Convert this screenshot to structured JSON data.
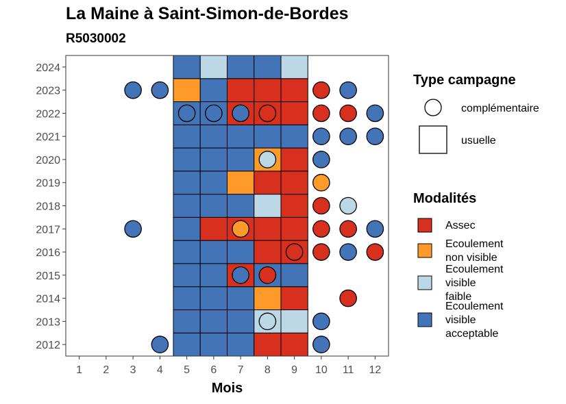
{
  "title": "La Maine à Saint-Simon-de-Bordes",
  "subtitle": "R5030002",
  "chart_data": {
    "type": "heatmap",
    "xlabel": "Mois",
    "ylabel": "",
    "x_ticks": [
      1,
      2,
      3,
      4,
      5,
      6,
      7,
      8,
      9,
      10,
      11,
      12
    ],
    "y_ticks": [
      2012,
      2013,
      2014,
      2015,
      2016,
      2017,
      2018,
      2019,
      2020,
      2021,
      2022,
      2023,
      2024
    ],
    "xlim": [
      0.5,
      12.5
    ],
    "ylim": [
      2011.5,
      2024.5
    ],
    "shaded_months": [
      5,
      9
    ],
    "grid": false,
    "legend_position": "right",
    "legend_type": {
      "title": "Type campagne",
      "entries": [
        {
          "key": "complementaire",
          "label": "complémentaire",
          "shape": "circle"
        },
        {
          "key": "usuelle",
          "label": "usuelle",
          "shape": "square"
        }
      ]
    },
    "legend_modalites": {
      "title": "Modalités",
      "entries": [
        {
          "key": "assec",
          "lines": [
            "Assec"
          ],
          "color": "#d7301f"
        },
        {
          "key": "nonvis",
          "lines": [
            "Ecoulement",
            "non visible"
          ],
          "color": "#fd9a2a"
        },
        {
          "key": "faible",
          "lines": [
            "Ecoulement",
            "visible",
            "faible"
          ],
          "color": "#bcd7e6"
        },
        {
          "key": "accept",
          "lines": [
            "Ecoulement",
            "visible",
            "acceptable"
          ],
          "color": "#4474b8"
        }
      ]
    },
    "usuelle": {
      "2024": [
        "accept",
        "faible",
        "accept",
        "accept",
        "faible"
      ],
      "2023": [
        "nonvis",
        "accept",
        "assec",
        "assec",
        "assec"
      ],
      "2022": [
        "accept",
        "accept",
        "assec",
        "assec",
        "assec"
      ],
      "2021": [
        "accept",
        "accept",
        "accept",
        "accept",
        "accept"
      ],
      "2020": [
        "accept",
        "accept",
        "accept",
        "nonvis",
        "assec"
      ],
      "2019": [
        "accept",
        "accept",
        "nonvis",
        "assec",
        "assec"
      ],
      "2018": [
        "accept",
        "accept",
        "accept",
        "faible",
        "assec"
      ],
      "2017": [
        "accept",
        "assec",
        "assec",
        "assec",
        "assec"
      ],
      "2016": [
        "accept",
        "accept",
        "accept",
        "assec",
        "assec"
      ],
      "2015": [
        "accept",
        "accept",
        "assec",
        "accept",
        "accept"
      ],
      "2014": [
        "accept",
        "accept",
        "accept",
        "nonvis",
        "assec"
      ],
      "2013": [
        "accept",
        "accept",
        "accept",
        "faible",
        "faible"
      ],
      "2012": [
        "accept",
        "accept",
        "accept",
        "assec",
        "assec"
      ]
    },
    "complementaire": [
      {
        "year": 2023,
        "month": 3,
        "mod": "accept"
      },
      {
        "year": 2023,
        "month": 4,
        "mod": "accept"
      },
      {
        "year": 2023,
        "month": 10,
        "mod": "assec"
      },
      {
        "year": 2023,
        "month": 11,
        "mod": "accept"
      },
      {
        "year": 2022,
        "month": 5,
        "mod": "accept"
      },
      {
        "year": 2022,
        "month": 6,
        "mod": "accept"
      },
      {
        "year": 2022,
        "month": 7,
        "mod": "accept"
      },
      {
        "year": 2022,
        "month": 8,
        "mod": "assec"
      },
      {
        "year": 2022,
        "month": 10,
        "mod": "assec"
      },
      {
        "year": 2022,
        "month": 11,
        "mod": "assec"
      },
      {
        "year": 2022,
        "month": 12,
        "mod": "accept"
      },
      {
        "year": 2021,
        "month": 10,
        "mod": "accept"
      },
      {
        "year": 2021,
        "month": 11,
        "mod": "accept"
      },
      {
        "year": 2021,
        "month": 12,
        "mod": "accept"
      },
      {
        "year": 2020,
        "month": 8,
        "mod": "faible"
      },
      {
        "year": 2020,
        "month": 10,
        "mod": "accept"
      },
      {
        "year": 2019,
        "month": 10,
        "mod": "nonvis"
      },
      {
        "year": 2018,
        "month": 10,
        "mod": "assec"
      },
      {
        "year": 2018,
        "month": 11,
        "mod": "faible"
      },
      {
        "year": 2017,
        "month": 3,
        "mod": "accept"
      },
      {
        "year": 2017,
        "month": 7,
        "mod": "nonvis"
      },
      {
        "year": 2017,
        "month": 10,
        "mod": "assec"
      },
      {
        "year": 2017,
        "month": 11,
        "mod": "assec"
      },
      {
        "year": 2017,
        "month": 12,
        "mod": "accept"
      },
      {
        "year": 2016,
        "month": 9,
        "mod": "assec"
      },
      {
        "year": 2016,
        "month": 10,
        "mod": "assec"
      },
      {
        "year": 2016,
        "month": 11,
        "mod": "accept"
      },
      {
        "year": 2016,
        "month": 12,
        "mod": "assec"
      },
      {
        "year": 2015,
        "month": 7,
        "mod": "accept"
      },
      {
        "year": 2015,
        "month": 8,
        "mod": "assec"
      },
      {
        "year": 2014,
        "month": 11,
        "mod": "assec"
      },
      {
        "year": 2013,
        "month": 8,
        "mod": "faible"
      },
      {
        "year": 2013,
        "month": 10,
        "mod": "accept"
      },
      {
        "year": 2012,
        "month": 4,
        "mod": "accept"
      },
      {
        "year": 2012,
        "month": 10,
        "mod": "accept"
      }
    ]
  }
}
